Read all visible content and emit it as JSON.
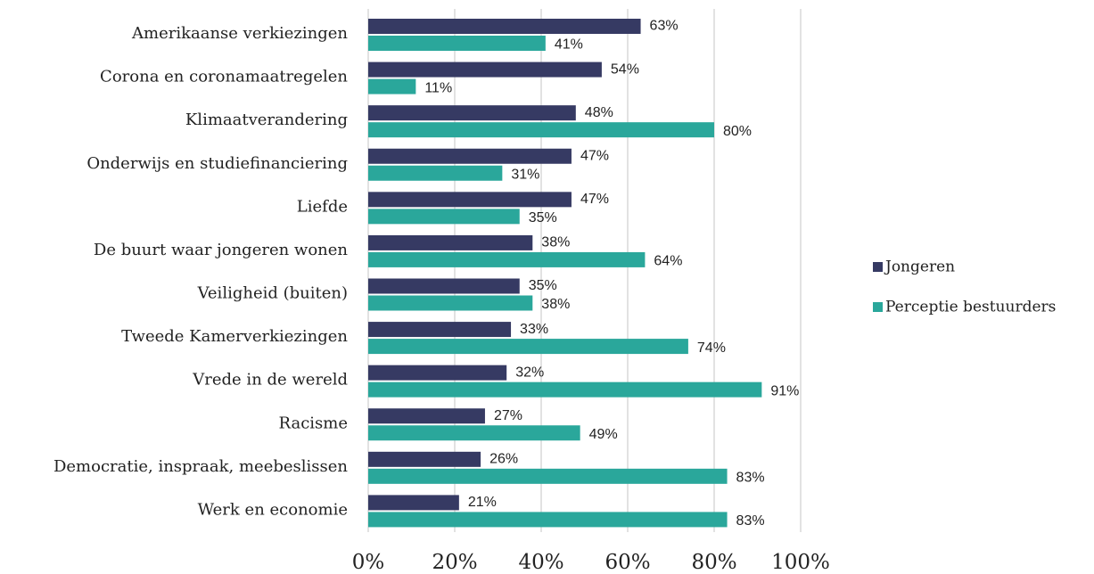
{
  "chart_data": {
    "type": "hbar",
    "categories": [
      "Amerikaanse verkiezingen",
      "Corona en coronamaatregelen",
      "Klimaatverandering",
      "Onderwijs en studiefinanciering",
      "Liefde",
      "De buurt waar jongeren wonen",
      "Veiligheid (buiten)",
      "Tweede Kamerverkiezingen",
      "Vrede in de wereld",
      "Racisme",
      "Democratie, inspraak, meebeslissen",
      "Werk en economie"
    ],
    "series": [
      {
        "name": "Jongeren",
        "color": "#363a63",
        "values": [
          63,
          54,
          48,
          47,
          47,
          38,
          35,
          33,
          32,
          27,
          26,
          21
        ],
        "value_labels": [
          "63%",
          "54%",
          "48%",
          "47%",
          "47%",
          "38%",
          "35%",
          "33%",
          "32%",
          "27%",
          "26%",
          "21%"
        ]
      },
      {
        "name": "Perceptie bestuurders",
        "color": "#2aa79b",
        "values": [
          41,
          11,
          80,
          31,
          35,
          64,
          38,
          74,
          91,
          49,
          83,
          83
        ],
        "value_labels": [
          "41%",
          "11%",
          "80%",
          "31%",
          "35%",
          "64%",
          "38%",
          "74%",
          "91%",
          "49%",
          "83%",
          "83%"
        ]
      }
    ],
    "xlim": [
      0,
      100
    ],
    "xticks": [
      {
        "value": 0,
        "label": "0%"
      },
      {
        "value": 20,
        "label": "20%"
      },
      {
        "value": 40,
        "label": "40%"
      },
      {
        "value": 60,
        "label": "60%"
      },
      {
        "value": 80,
        "label": "80%"
      },
      {
        "value": 100,
        "label": "100%"
      }
    ],
    "grid": true
  }
}
